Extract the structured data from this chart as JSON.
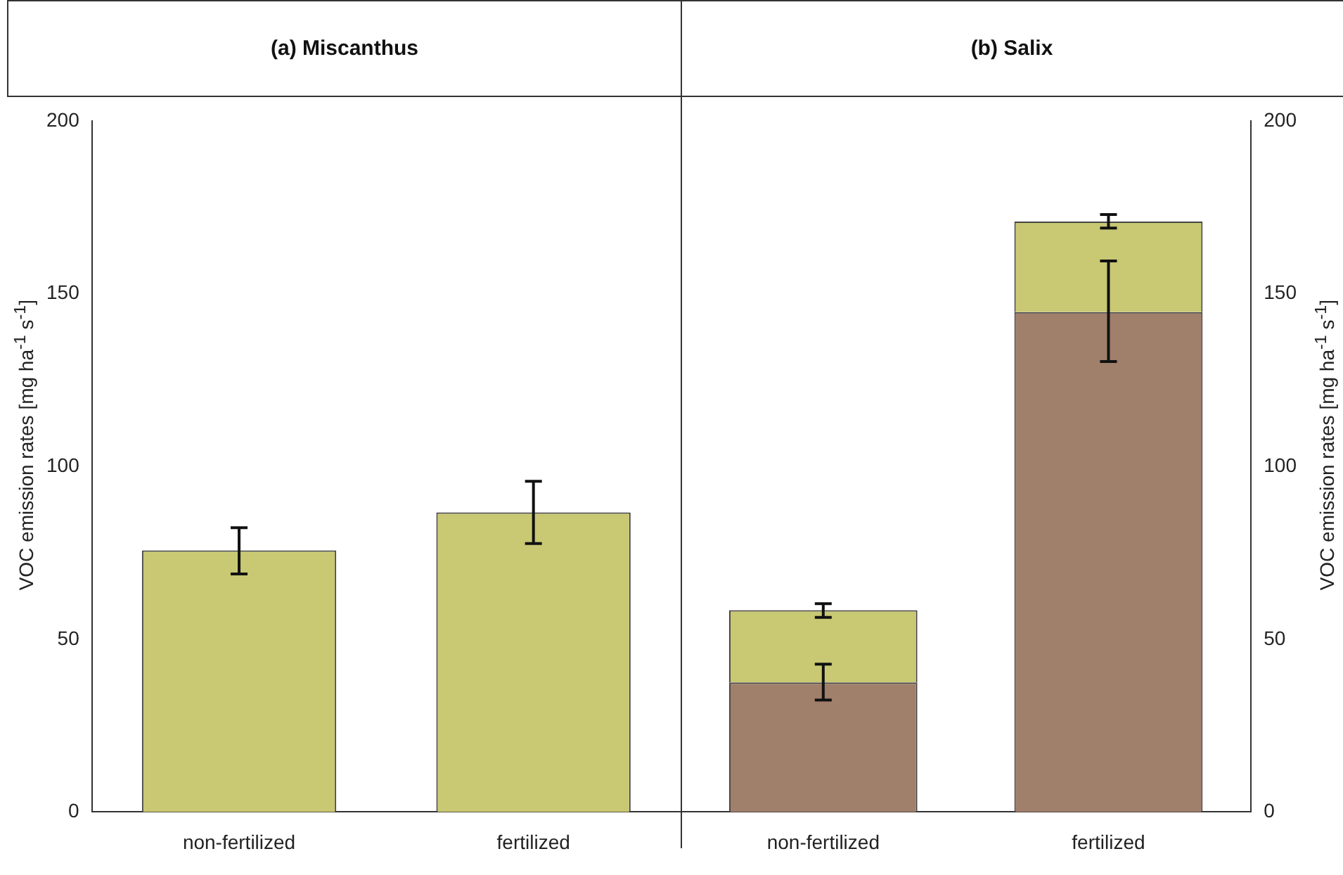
{
  "chart_data": [
    {
      "type": "bar",
      "title": "(a) Miscanthus",
      "ylabel": "VOC emission rates [mg ha$^{-1}$ s$^{-1}$]",
      "categories": [
        "non-fertilized",
        "fertilized"
      ],
      "series": [
        {
          "color": "#c9c873",
          "values": [
            75.7,
            86.7
          ],
          "errors": [
            [
              68.9,
              82.3
            ],
            [
              77.7,
              95.7
            ]
          ]
        }
      ],
      "ylim": [
        0,
        200
      ],
      "yticks": [
        0,
        50,
        100,
        150,
        200
      ],
      "grid": false,
      "legend": false
    },
    {
      "type": "bar",
      "title": "(b) Salix",
      "y2label": "VOC emission rates [mg ha$^{-1}$ s$^{-1}$]",
      "categories": [
        "non-fertilized",
        "fertilized"
      ],
      "stacked": true,
      "series": [
        {
          "color": "#a07f6b",
          "axis": "y2",
          "values": [
            37.5,
            144.7
          ],
          "errors": [
            [
              32.4,
              42.8
            ],
            [
              130.4,
              159.5
            ]
          ]
        },
        {
          "color": "#c9c873",
          "axis": "y2",
          "values": [
            20.9,
            26.2
          ],
          "errors": [
            [
              56.3,
              60.3
            ],
            [
              169,
              172.9
            ]
          ]
        }
      ],
      "y2lim": [
        0,
        200
      ],
      "y2ticks": [
        0,
        50,
        100,
        150,
        200
      ],
      "grid": false,
      "legend": false
    }
  ]
}
